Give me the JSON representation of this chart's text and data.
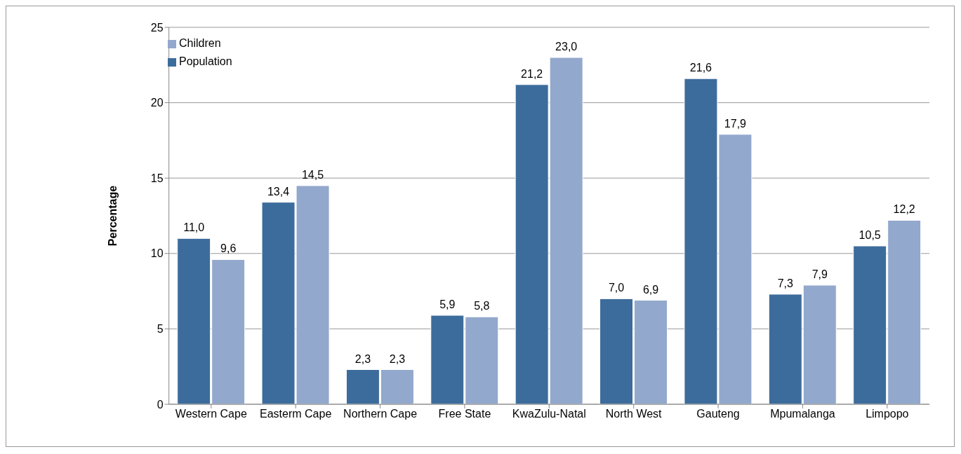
{
  "chart_data": {
    "type": "bar",
    "ylabel": "Percentage",
    "categories": [
      "Western Cape",
      "Easterm Cape",
      "Northern Cape",
      "Free State",
      "KwaZulu-Natal",
      "North West",
      "Gauteng",
      "Mpumalanga",
      "Limpopo"
    ],
    "series": [
      {
        "name": "Population",
        "color": "#3c6c9c",
        "values": [
          11.0,
          13.4,
          2.3,
          5.9,
          21.2,
          7.0,
          21.6,
          7.3,
          10.5
        ],
        "value_labels": [
          "11,0",
          "13,4",
          "2,3",
          "5,9",
          "21,2",
          "7,0",
          "21,6",
          "7,3",
          "10,5"
        ]
      },
      {
        "name": "Children",
        "color": "#92a8cc",
        "values": [
          9.6,
          14.5,
          2.3,
          5.8,
          23.0,
          6.9,
          17.9,
          7.9,
          12.2
        ],
        "value_labels": [
          "9,6",
          "14,5",
          "2,3",
          "5,8",
          "23,0",
          "6,9",
          "17,9",
          "7,9",
          "12,2"
        ]
      }
    ],
    "ylim": [
      0,
      25
    ],
    "yticks": [
      0,
      5,
      10,
      15,
      20,
      25
    ],
    "grid": "y",
    "legend": "top left"
  }
}
